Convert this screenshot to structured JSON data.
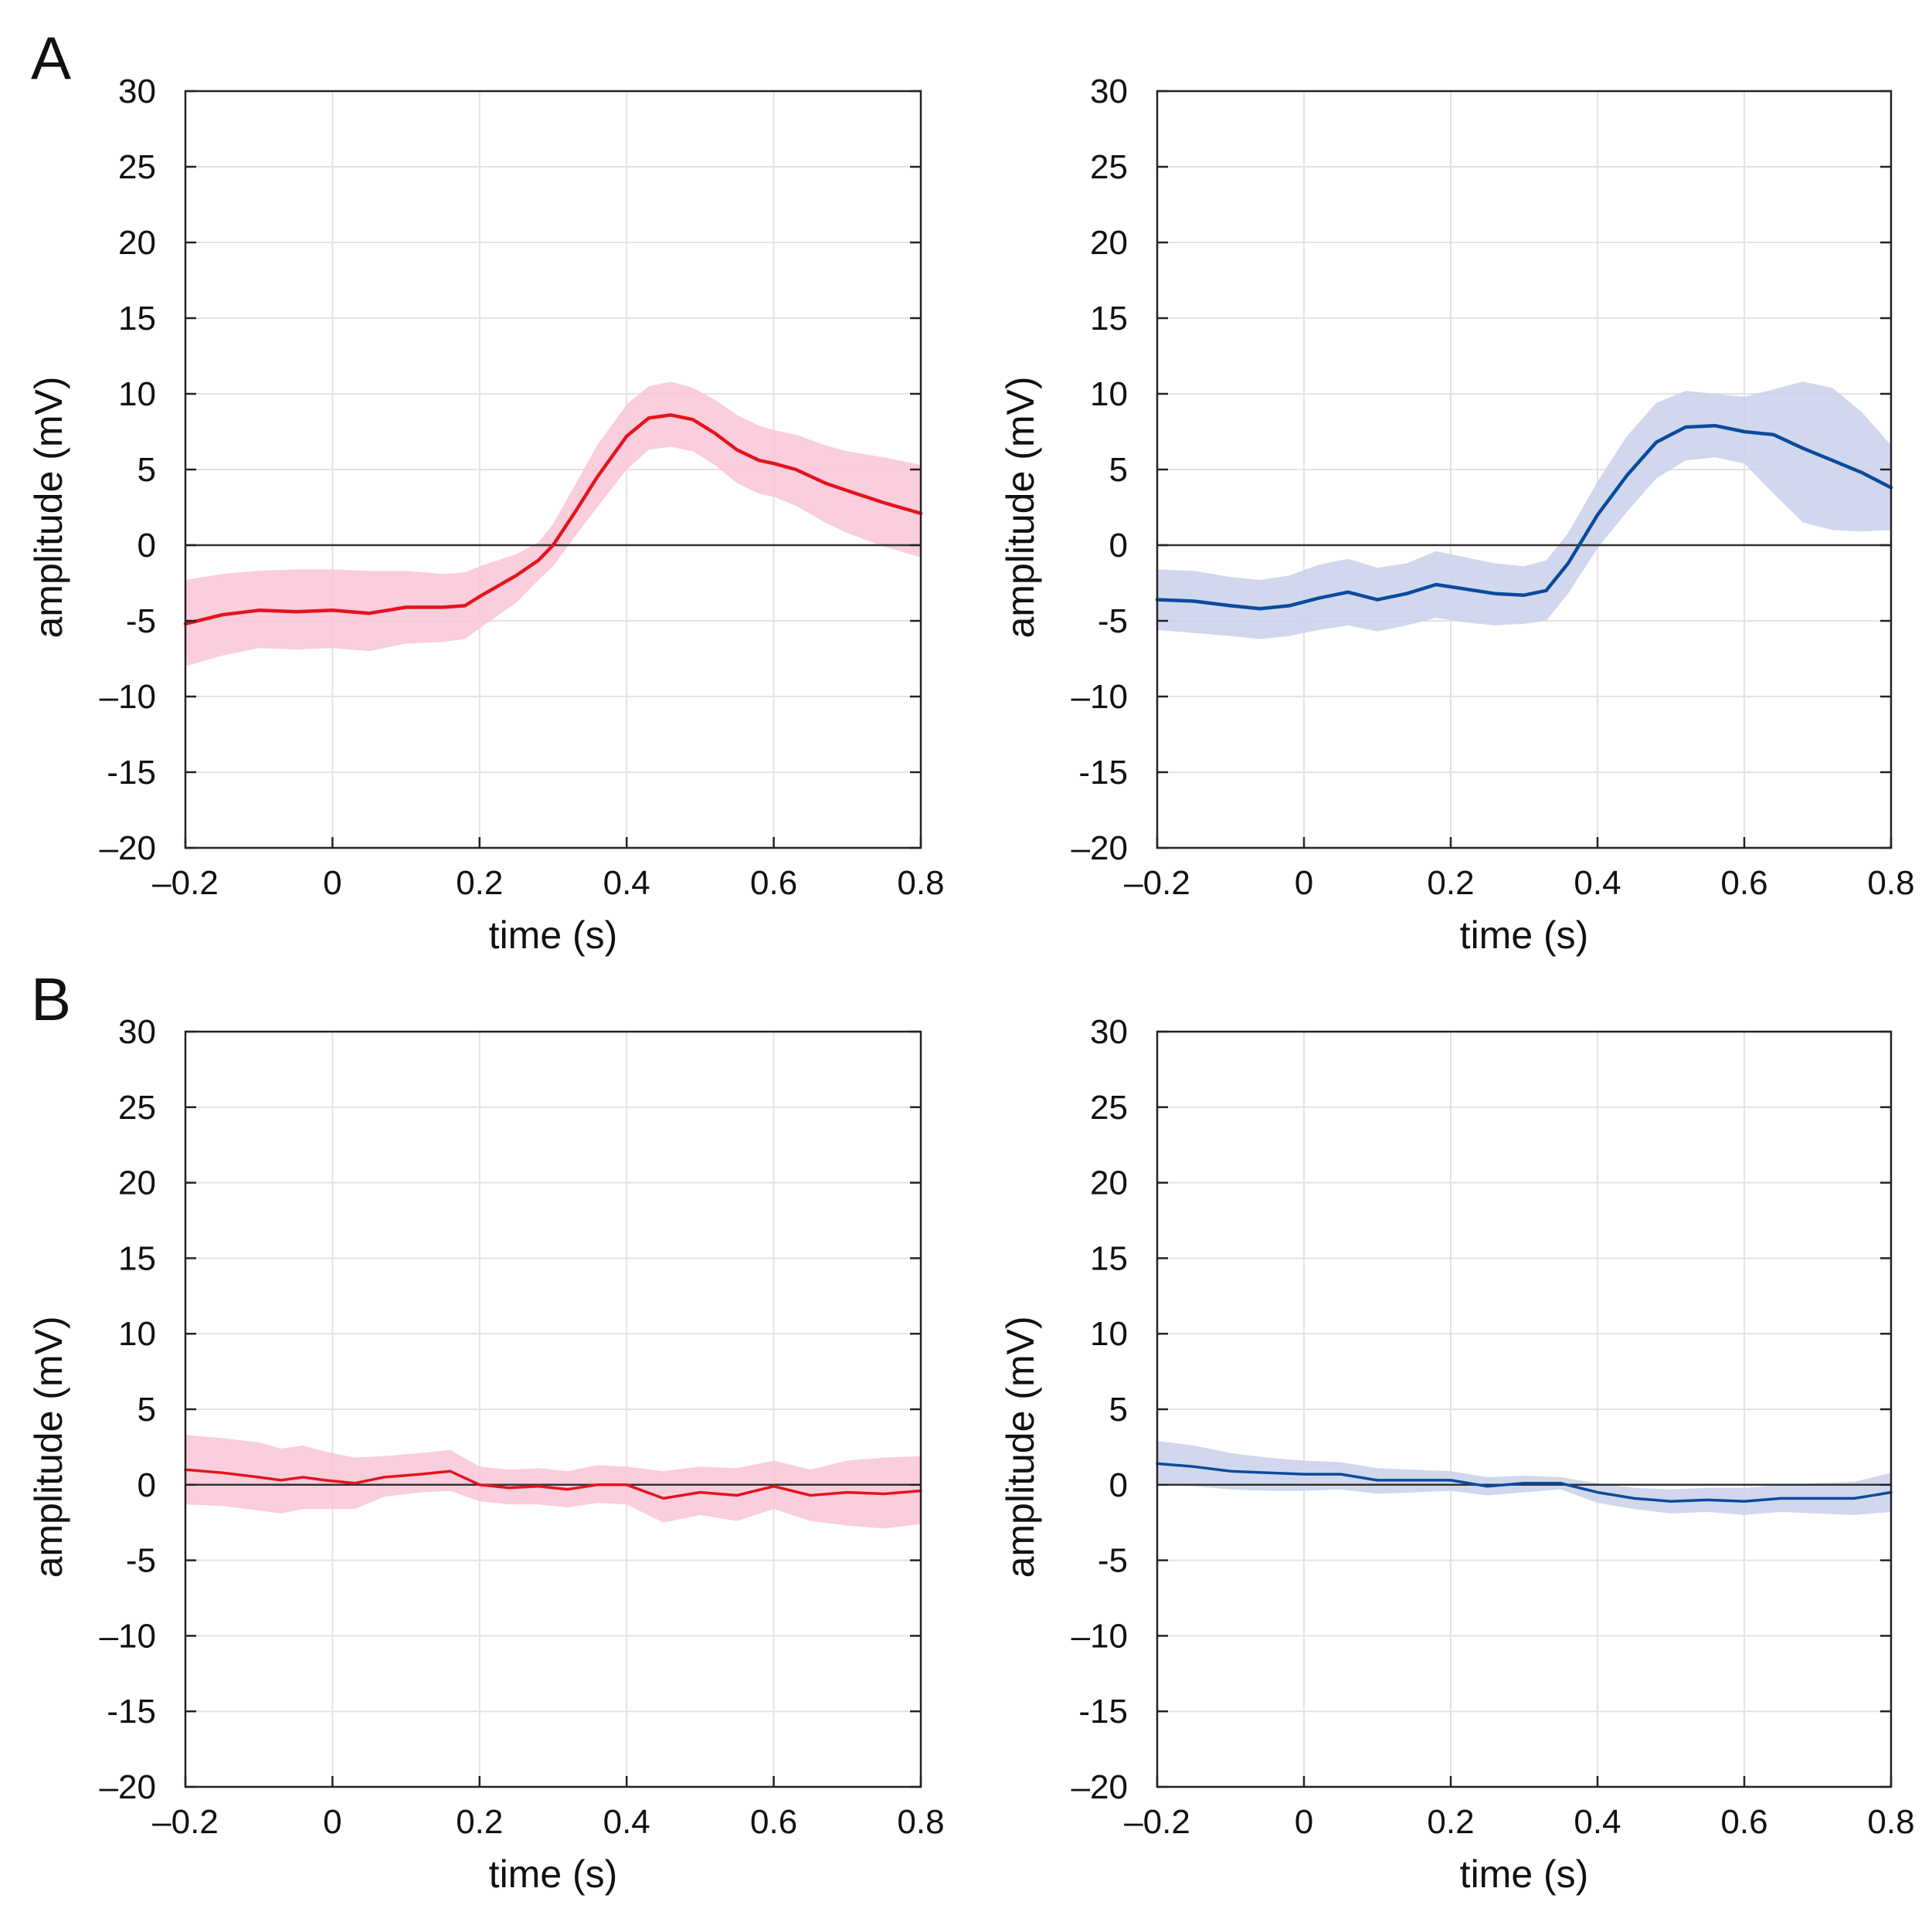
{
  "panel_labels": {
    "a": "A",
    "b": "B"
  },
  "colors": {
    "red_line": "#e3141e",
    "red_band": "#f9c6d6",
    "blue_line": "#0a4a9c",
    "blue_band": "#c9d1ea",
    "grid": "#e3e3e3",
    "axis": "#222222"
  },
  "chart_data": [
    {
      "type": "line",
      "panel": "A",
      "position": "left",
      "color": "red",
      "xlabel": "time (s)",
      "ylabel": "amplitude (mV)",
      "xlim": [
        -0.2,
        0.8
      ],
      "ylim": [
        -20,
        30
      ],
      "xticks": [
        -0.2,
        0,
        0.2,
        0.4,
        0.6,
        0.8
      ],
      "xtick_labels": [
        "–0.2",
        "0",
        "0.2",
        "0.4",
        "0.6",
        "0.8"
      ],
      "yticks": [
        30,
        25,
        20,
        15,
        10,
        5,
        0,
        -5,
        -10,
        -15,
        -20
      ],
      "ytick_labels": [
        "30",
        "25",
        "20",
        "15",
        "10",
        "5",
        "0",
        "-5",
        "–10",
        "-15",
        "–20"
      ],
      "grid": true,
      "zero_line": true,
      "x": [
        -0.2,
        -0.15,
        -0.1,
        -0.05,
        0,
        0.05,
        0.1,
        0.15,
        0.18,
        0.2,
        0.25,
        0.28,
        0.3,
        0.33,
        0.36,
        0.4,
        0.43,
        0.46,
        0.49,
        0.52,
        0.55,
        0.58,
        0.6,
        0.63,
        0.67,
        0.7,
        0.75,
        0.8
      ],
      "mean": [
        -5.2,
        -4.6,
        -4.3,
        -4.4,
        -4.3,
        -4.5,
        -4.1,
        -4.1,
        -4.0,
        -3.4,
        -2.0,
        -1.0,
        0.0,
        2.2,
        4.5,
        7.2,
        8.4,
        8.6,
        8.3,
        7.4,
        6.3,
        5.6,
        5.4,
        5.0,
        4.1,
        3.6,
        2.8,
        2.1
      ],
      "upper": [
        -2.3,
        -1.9,
        -1.7,
        -1.6,
        -1.6,
        -1.7,
        -1.7,
        -1.9,
        -1.8,
        -1.4,
        -0.6,
        0.2,
        1.4,
        4.0,
        6.6,
        9.3,
        10.5,
        10.8,
        10.4,
        9.6,
        8.6,
        7.9,
        7.6,
        7.3,
        6.6,
        6.2,
        5.8,
        5.3
      ],
      "lower": [
        -8.0,
        -7.3,
        -6.8,
        -6.9,
        -6.8,
        -7.0,
        -6.5,
        -6.4,
        -6.2,
        -5.5,
        -3.8,
        -2.3,
        -1.4,
        0.6,
        2.5,
        5.0,
        6.3,
        6.5,
        6.2,
        5.3,
        4.1,
        3.4,
        3.2,
        2.6,
        1.5,
        0.8,
        -0.1,
        -0.8
      ]
    },
    {
      "type": "line",
      "panel": "A",
      "position": "right",
      "color": "blue",
      "xlabel": "time (s)",
      "ylabel": "amplitude (mV)",
      "xlim": [
        -0.2,
        0.8
      ],
      "ylim": [
        -20,
        30
      ],
      "xticks": [
        -0.2,
        0,
        0.2,
        0.4,
        0.6,
        0.8
      ],
      "xtick_labels": [
        "–0.2",
        "0",
        "0.2",
        "0.4",
        "0.6",
        "0.8"
      ],
      "yticks": [
        30,
        25,
        20,
        15,
        10,
        5,
        0,
        -5,
        -10,
        -15,
        -20
      ],
      "ytick_labels": [
        "30",
        "25",
        "20",
        "15",
        "10",
        "5",
        "0",
        "-5",
        "–10",
        "-15",
        "–20"
      ],
      "grid": true,
      "zero_line": true,
      "x": [
        -0.2,
        -0.15,
        -0.1,
        -0.06,
        -0.02,
        0.02,
        0.06,
        0.1,
        0.14,
        0.18,
        0.22,
        0.26,
        0.3,
        0.33,
        0.36,
        0.4,
        0.44,
        0.48,
        0.52,
        0.56,
        0.6,
        0.64,
        0.68,
        0.72,
        0.76,
        0.8
      ],
      "mean": [
        -3.6,
        -3.7,
        -4.0,
        -4.2,
        -4.0,
        -3.5,
        -3.1,
        -3.6,
        -3.2,
        -2.6,
        -2.9,
        -3.2,
        -3.3,
        -3.0,
        -1.2,
        2.0,
        4.6,
        6.8,
        7.8,
        7.9,
        7.5,
        7.3,
        6.4,
        5.6,
        4.8,
        3.8
      ],
      "upper": [
        -1.6,
        -1.7,
        -2.1,
        -2.3,
        -2.0,
        -1.3,
        -0.9,
        -1.5,
        -1.2,
        -0.4,
        -0.8,
        -1.2,
        -1.4,
        -1.0,
        0.8,
        4.2,
        7.2,
        9.4,
        10.2,
        10.0,
        9.8,
        10.3,
        10.8,
        10.4,
        8.8,
        6.6
      ],
      "lower": [
        -5.6,
        -5.8,
        -6.0,
        -6.2,
        -6.0,
        -5.6,
        -5.3,
        -5.7,
        -5.3,
        -4.8,
        -5.1,
        -5.3,
        -5.2,
        -5.0,
        -3.2,
        -0.2,
        2.2,
        4.4,
        5.6,
        5.8,
        5.4,
        3.4,
        1.5,
        1.0,
        0.9,
        1.0
      ]
    },
    {
      "type": "line",
      "panel": "B",
      "position": "left",
      "color": "red",
      "xlabel": "time (s)",
      "ylabel": "amplitude (mV)",
      "xlim": [
        -0.2,
        0.8
      ],
      "ylim": [
        -20,
        30
      ],
      "xticks": [
        -0.2,
        0,
        0.2,
        0.4,
        0.6,
        0.8
      ],
      "xtick_labels": [
        "–0.2",
        "0",
        "0.2",
        "0.4",
        "0.6",
        "0.8"
      ],
      "yticks": [
        30,
        25,
        20,
        15,
        10,
        5,
        0,
        -5,
        -10,
        -15,
        -20
      ],
      "ytick_labels": [
        "30",
        "25",
        "20",
        "15",
        "10",
        "5",
        "0",
        "-5",
        "–10",
        "-15",
        "–20"
      ],
      "grid": true,
      "zero_line": true,
      "x": [
        -0.2,
        -0.15,
        -0.1,
        -0.07,
        -0.04,
        -0.01,
        0.03,
        0.07,
        0.12,
        0.16,
        0.2,
        0.24,
        0.28,
        0.32,
        0.36,
        0.4,
        0.45,
        0.5,
        0.55,
        0.6,
        0.65,
        0.7,
        0.75,
        0.8
      ],
      "mean": [
        1.0,
        0.8,
        0.5,
        0.3,
        0.5,
        0.3,
        0.1,
        0.5,
        0.7,
        0.9,
        0.0,
        -0.2,
        -0.1,
        -0.3,
        0.0,
        0.0,
        -0.9,
        -0.5,
        -0.7,
        -0.1,
        -0.7,
        -0.5,
        -0.6,
        -0.4
      ],
      "upper": [
        3.3,
        3.1,
        2.8,
        2.4,
        2.6,
        2.2,
        1.8,
        1.9,
        2.1,
        2.3,
        1.2,
        1.0,
        1.1,
        0.9,
        1.3,
        1.2,
        0.9,
        1.2,
        1.1,
        1.6,
        1.0,
        1.6,
        1.8,
        1.9
      ],
      "lower": [
        -1.3,
        -1.4,
        -1.7,
        -1.9,
        -1.6,
        -1.6,
        -1.6,
        -0.8,
        -0.5,
        -0.4,
        -1.1,
        -1.3,
        -1.3,
        -1.5,
        -1.2,
        -1.3,
        -2.5,
        -2.0,
        -2.4,
        -1.6,
        -2.4,
        -2.7,
        -2.9,
        -2.6
      ]
    },
    {
      "type": "line",
      "panel": "B",
      "position": "right",
      "color": "blue",
      "xlabel": "time (s)",
      "ylabel": "amplitude (mV)",
      "xlim": [
        -0.2,
        0.8
      ],
      "ylim": [
        -20,
        30
      ],
      "xticks": [
        -0.2,
        0,
        0.2,
        0.4,
        0.6,
        0.8
      ],
      "xtick_labels": [
        "–0.2",
        "0",
        "0.2",
        "0.4",
        "0.6",
        "0.8"
      ],
      "yticks": [
        30,
        25,
        20,
        15,
        10,
        5,
        0,
        -5,
        -10,
        -15,
        -20
      ],
      "ytick_labels": [
        "30",
        "25",
        "20",
        "15",
        "10",
        "5",
        "0",
        "-5",
        "–10",
        "-15",
        "–20"
      ],
      "grid": true,
      "zero_line": true,
      "x": [
        -0.2,
        -0.15,
        -0.1,
        -0.05,
        0,
        0.05,
        0.1,
        0.15,
        0.2,
        0.25,
        0.3,
        0.35,
        0.4,
        0.45,
        0.5,
        0.55,
        0.6,
        0.65,
        0.7,
        0.75,
        0.8
      ],
      "mean": [
        1.4,
        1.2,
        0.9,
        0.8,
        0.7,
        0.7,
        0.3,
        0.3,
        0.3,
        -0.1,
        0.1,
        0.1,
        -0.5,
        -0.9,
        -1.1,
        -1.0,
        -1.1,
        -0.9,
        -0.9,
        -0.9,
        -0.5
      ],
      "upper": [
        2.9,
        2.6,
        2.1,
        1.8,
        1.6,
        1.5,
        1.1,
        1.0,
        0.9,
        0.5,
        0.6,
        0.5,
        0.1,
        -0.2,
        -0.3,
        -0.2,
        -0.2,
        0.0,
        0.1,
        0.2,
        0.8
      ],
      "lower": [
        0.1,
        -0.1,
        -0.3,
        -0.4,
        -0.4,
        -0.3,
        -0.6,
        -0.5,
        -0.4,
        -0.7,
        -0.5,
        -0.3,
        -1.2,
        -1.6,
        -1.9,
        -1.8,
        -2.0,
        -1.8,
        -1.9,
        -2.0,
        -1.8
      ]
    }
  ]
}
